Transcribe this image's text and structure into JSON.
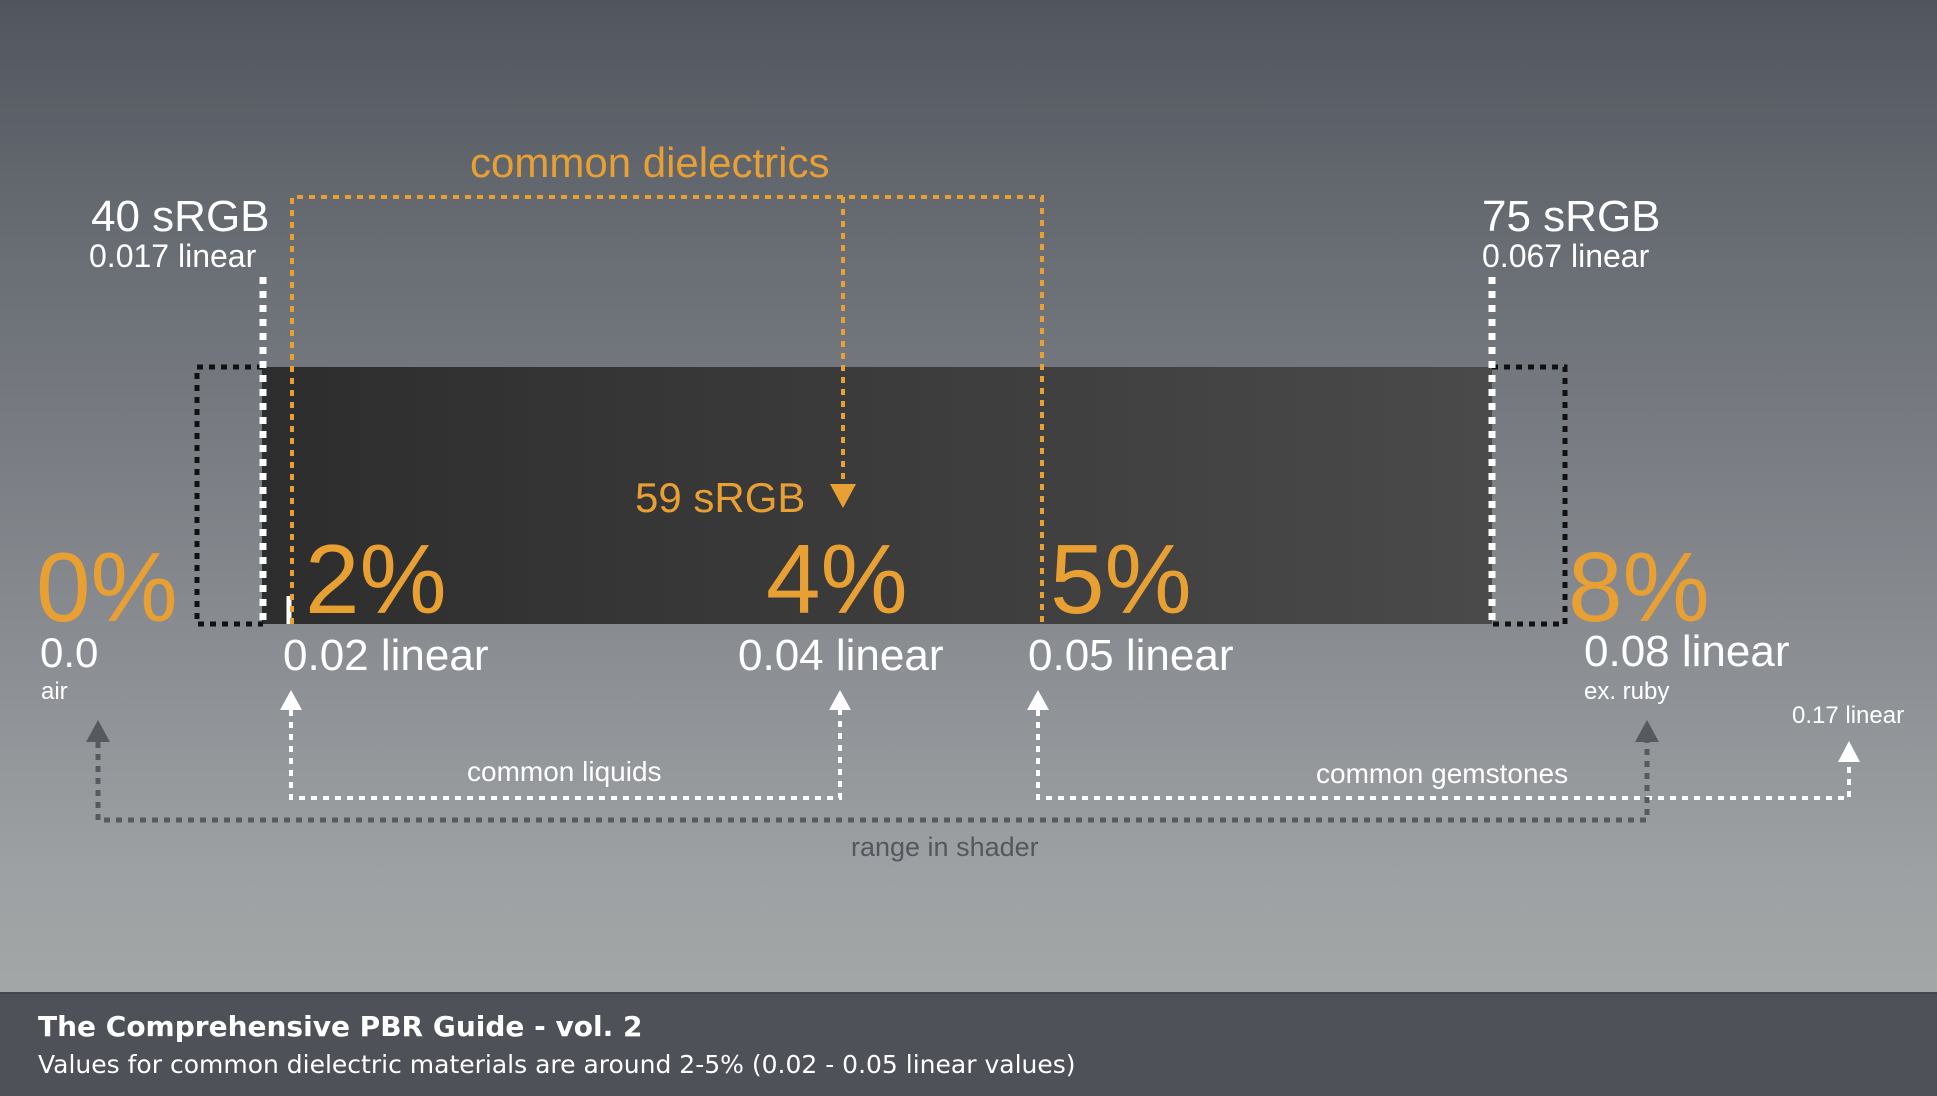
{
  "labels": {
    "common_dielectrics": "common dielectrics",
    "srgb_40": "40 sRGB",
    "linear_0017": "0.017 linear",
    "srgb_75": "75 sRGB",
    "linear_0067": "0.067 linear",
    "srgb_59": "59 sRGB",
    "pct_0": "0%",
    "pct_2": "2%",
    "pct_4": "4%",
    "pct_5": "5%",
    "pct_8": "8%",
    "val_00": "0.0",
    "air": "air",
    "linear_002": "0.02 linear",
    "linear_004": "0.04 linear",
    "linear_005": "0.05 linear",
    "linear_008": "0.08 linear",
    "ex_ruby": "ex. ruby",
    "linear_017": "0.17 linear",
    "common_liquids": "common liquids",
    "common_gemstones": "common gemstones",
    "range_in_shader": "range in shader"
  },
  "footer": {
    "title": "The Comprehensive PBR Guide - vol. 2",
    "subtitle": "Values for common dielectric materials are around 2-5% (0.02 - 0.05 linear values)"
  },
  "colors": {
    "accent_orange": "#e9a033",
    "bar_dark": "#2e2e2e",
    "bar_light": "#474747",
    "gray_arrow": "#555a61"
  }
}
